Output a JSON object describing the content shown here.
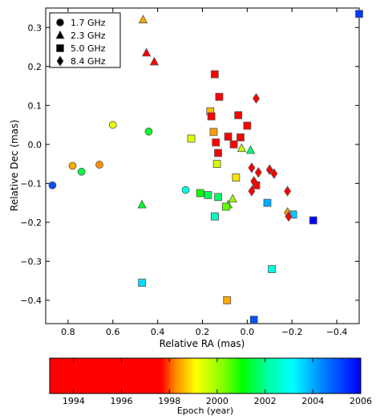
{
  "chart_data": {
    "type": "scatter",
    "title": "",
    "xlabel": "Relative RA (mas)",
    "ylabel": "Relative Dec (mas)",
    "xlim": [
      0.9,
      -0.5
    ],
    "ylim": [
      -0.46,
      0.35
    ],
    "x_ticks": [
      "0.8",
      "0.6",
      "0.4",
      "0.2",
      "0.0",
      "−0.2",
      "−0.4"
    ],
    "y_ticks": [
      "0.3",
      "0.2",
      "0.1",
      "0.0",
      "−0.1",
      "−0.2",
      "−0.3",
      "−0.4"
    ],
    "grid": false,
    "legend": {
      "placement": "top-left",
      "entries": [
        {
          "label": "1.7 GHz",
          "marker": "circle"
        },
        {
          "label": "2.3 GHz",
          "marker": "triangle"
        },
        {
          "label": "5.0 GHz",
          "marker": "square"
        },
        {
          "label": "8.4 GHz",
          "marker": "diamond"
        }
      ]
    },
    "colorbar": {
      "label": "Epoch (year)",
      "range": [
        1993,
        2006
      ],
      "ticks": [
        "1994",
        "1996",
        "1998",
        "2000",
        "2002",
        "2004",
        "2006"
      ]
    },
    "series": [
      {
        "marker": "circle",
        "points": [
          {
            "x": 0.87,
            "y": -0.105,
            "epoch": 2005.0
          },
          {
            "x": 0.78,
            "y": -0.055,
            "epoch": 1998.5
          },
          {
            "x": 0.74,
            "y": -0.07,
            "epoch": 2001.5
          },
          {
            "x": 0.66,
            "y": -0.052,
            "epoch": 1998.3
          },
          {
            "x": 0.6,
            "y": 0.05,
            "epoch": 1999.3
          },
          {
            "x": 0.44,
            "y": 0.033,
            "epoch": 2001.3
          },
          {
            "x": 0.275,
            "y": -0.117,
            "epoch": 2002.8
          }
        ]
      },
      {
        "marker": "triangle",
        "points": [
          {
            "x": 0.465,
            "y": 0.32,
            "epoch": 1998.5
          },
          {
            "x": 0.45,
            "y": 0.235,
            "epoch": 1994.5
          },
          {
            "x": 0.415,
            "y": 0.212,
            "epoch": 1994.7
          },
          {
            "x": 0.47,
            "y": -0.155,
            "epoch": 2001.3
          },
          {
            "x": 0.085,
            "y": -0.155,
            "epoch": 2000.5
          },
          {
            "x": 0.065,
            "y": -0.14,
            "epoch": 2000.0
          },
          {
            "x": 0.025,
            "y": -0.01,
            "epoch": 1999.6
          },
          {
            "x": -0.015,
            "y": -0.015,
            "epoch": 2001.8
          }
        ]
      },
      {
        "marker": "square",
        "points": [
          {
            "x": -0.5,
            "y": 0.335,
            "epoch": 2005.3
          },
          {
            "x": 0.145,
            "y": 0.18,
            "epoch": 1994.5
          },
          {
            "x": 0.125,
            "y": 0.122,
            "epoch": 1994.2
          },
          {
            "x": 0.165,
            "y": 0.085,
            "epoch": 1998.6
          },
          {
            "x": 0.16,
            "y": 0.072,
            "epoch": 1994.3
          },
          {
            "x": 0.15,
            "y": 0.032,
            "epoch": 1998.4
          },
          {
            "x": 0.14,
            "y": 0.005,
            "epoch": 1994.0
          },
          {
            "x": 0.13,
            "y": -0.022,
            "epoch": 1994.8
          },
          {
            "x": 0.25,
            "y": 0.015,
            "epoch": 1999.4
          },
          {
            "x": 0.135,
            "y": -0.05,
            "epoch": 1999.5
          },
          {
            "x": 0.085,
            "y": 0.02,
            "epoch": 1994.2
          },
          {
            "x": 0.06,
            "y": 0.0,
            "epoch": 1994.4
          },
          {
            "x": 0.04,
            "y": 0.075,
            "epoch": 1994.6
          },
          {
            "x": 0.03,
            "y": 0.018,
            "epoch": 1994.1
          },
          {
            "x": 0.0,
            "y": 0.048,
            "epoch": 1994.3
          },
          {
            "x": 0.05,
            "y": -0.085,
            "epoch": 1998.9
          },
          {
            "x": 0.21,
            "y": -0.125,
            "epoch": 2001.0
          },
          {
            "x": 0.175,
            "y": -0.13,
            "epoch": 2001.6
          },
          {
            "x": 0.145,
            "y": -0.185,
            "epoch": 2002.5
          },
          {
            "x": 0.145,
            "y": -0.185,
            "epoch": 2002.5
          },
          {
            "x": 0.13,
            "y": -0.135,
            "epoch": 2001.7
          },
          {
            "x": 0.095,
            "y": -0.16,
            "epoch": 2000.5
          },
          {
            "x": -0.04,
            "y": -0.105,
            "epoch": 1994.3
          },
          {
            "x": -0.09,
            "y": -0.15,
            "epoch": 2004.0
          },
          {
            "x": -0.205,
            "y": -0.18,
            "epoch": 2003.7
          },
          {
            "x": -0.295,
            "y": -0.195,
            "epoch": 2006.0
          },
          {
            "x": -0.11,
            "y": -0.32,
            "epoch": 2002.8
          },
          {
            "x": 0.47,
            "y": -0.355,
            "epoch": 2003.5
          },
          {
            "x": 0.09,
            "y": -0.4,
            "epoch": 1998.5
          },
          {
            "x": -0.03,
            "y": -0.45,
            "epoch": 2005.0
          }
        ]
      },
      {
        "marker": "diamond",
        "points": [
          {
            "x": -0.04,
            "y": 0.118,
            "epoch": 1994.2
          },
          {
            "x": -0.02,
            "y": -0.06,
            "epoch": 1994.3
          },
          {
            "x": -0.05,
            "y": -0.072,
            "epoch": 1994.6
          },
          {
            "x": -0.1,
            "y": -0.065,
            "epoch": 1994.2
          },
          {
            "x": -0.12,
            "y": -0.075,
            "epoch": 1994.5
          },
          {
            "x": -0.03,
            "y": -0.095,
            "epoch": 1994.8
          },
          {
            "x": -0.02,
            "y": -0.12,
            "epoch": 1994.4
          },
          {
            "x": -0.18,
            "y": -0.12,
            "epoch": 1994.3
          },
          {
            "x": -0.18,
            "y": -0.175,
            "epoch": 1998.4
          },
          {
            "x": -0.185,
            "y": -0.185,
            "epoch": 1994.5
          }
        ]
      }
    ]
  }
}
